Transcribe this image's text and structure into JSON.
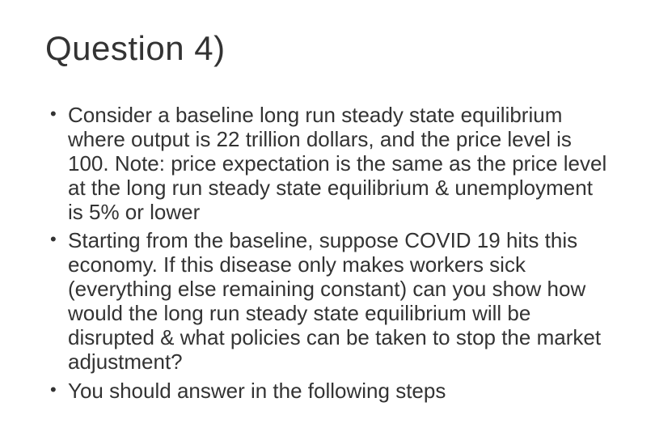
{
  "title": "Question 4)",
  "bullets": [
    "Consider a baseline long run steady state equilibrium where output is 22 trillion dollars, and the price level is 100. Note: price expectation is the same as the price level at the long run steady state equilibrium & unemployment is 5% or lower",
    "Starting from the baseline, suppose COVID 19 hits this economy. If this disease only makes workers sick (everything else remaining constant) can you show how would the long run steady state equilibrium will be disrupted & what policies can be taken to stop the market adjustment?",
    "You should answer in the following steps"
  ],
  "colors": {
    "background": "#ffffff",
    "text": "#333333"
  },
  "typography": {
    "title_fontsize": 42,
    "body_fontsize": 26,
    "font_family": "Segoe UI"
  }
}
